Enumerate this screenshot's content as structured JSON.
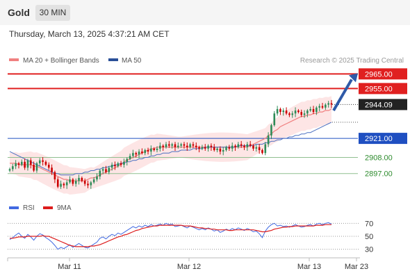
{
  "header": {
    "instrument": "Gold",
    "timeframe": "30 MIN"
  },
  "timestamp": "Thursday, March 13, 2025 4:37:21 AM CET",
  "legend": {
    "ma20": "MA 20 + Bollinger Bands",
    "ma50": "MA 50",
    "credit": "Research © 2025 Trading Central"
  },
  "rsi_legend": {
    "rsi": "RSI",
    "ma9": "9MA"
  },
  "colors": {
    "up": "#2e8b57",
    "down": "#cc0000",
    "resistance": "#e02020",
    "support": "#1f4fc1",
    "green_level": "#2e8b2e",
    "ma20": "#f08080",
    "ma50": "#4a6fc0",
    "bollinger": "#fde0e0",
    "rsi": "#4169e1",
    "rsi_ma": "#dd1c1c",
    "arrow": "#2f5aa8"
  },
  "chart_data": [
    {
      "type": "candlestick",
      "title": "Gold 30 MIN",
      "y_range": [
        2885,
        2968
      ],
      "x_labels": [
        "Mar 11",
        "Mar 12",
        "Mar 13",
        "Mar 23"
      ],
      "last_price": 2944.09,
      "levels": [
        {
          "label": "2965.00",
          "value": 2965.0,
          "kind": "resistance"
        },
        {
          "label": "2955.00",
          "value": 2955.0,
          "kind": "resistance"
        },
        {
          "label": "2944.09",
          "value": 2944.09,
          "kind": "last"
        },
        {
          "label": "2921.00",
          "value": 2921.0,
          "kind": "support"
        },
        {
          "label": "2908.00",
          "value": 2908.0,
          "kind": "minor"
        },
        {
          "label": "2897.00",
          "value": 2897.0,
          "kind": "minor"
        }
      ],
      "forecast_arrow": {
        "from_price": 2940,
        "to_price": 2965
      },
      "closes": [
        2900,
        2902,
        2904,
        2903,
        2905,
        2901,
        2906,
        2903,
        2899,
        2904,
        2906,
        2905,
        2903,
        2901,
        2898,
        2893,
        2888,
        2890,
        2889,
        2891,
        2893,
        2890,
        2892,
        2894,
        2892,
        2890,
        2889,
        2891,
        2893,
        2895,
        2899,
        2900,
        2898,
        2901,
        2903,
        2902,
        2904,
        2903,
        2905,
        2907,
        2909,
        2911,
        2910,
        2912,
        2911,
        2913,
        2912,
        2914,
        2913,
        2914,
        2916,
        2915,
        2917,
        2916,
        2917,
        2915,
        2916,
        2917,
        2916,
        2915,
        2917,
        2916,
        2915,
        2914,
        2915,
        2914,
        2916,
        2915,
        2913,
        2914,
        2912,
        2913,
        2915,
        2914,
        2916,
        2915,
        2917,
        2916,
        2915,
        2917,
        2916,
        2914,
        2915,
        2913,
        2911,
        2917,
        2923,
        2930,
        2938,
        2941,
        2939,
        2940,
        2938,
        2937,
        2938,
        2940,
        2939,
        2937,
        2938,
        2940,
        2941,
        2939,
        2942,
        2943,
        2942,
        2944,
        2945,
        2944.09
      ],
      "ma20": [
        2904,
        2904,
        2904,
        2903,
        2903,
        2903,
        2903,
        2903,
        2902,
        2902,
        2901,
        2900,
        2899,
        2898,
        2897,
        2896,
        2895,
        2894,
        2893,
        2893,
        2892,
        2892,
        2892,
        2892,
        2892,
        2892,
        2893,
        2894,
        2894,
        2895,
        2896,
        2897,
        2898,
        2899,
        2900,
        2901,
        2902,
        2903,
        2905,
        2906,
        2907,
        2908,
        2909,
        2910,
        2911,
        2912,
        2913,
        2914,
        2914,
        2915,
        2915,
        2915,
        2915,
        2915,
        2915,
        2915,
        2915,
        2915,
        2915,
        2915,
        2915,
        2915,
        2915,
        2915,
        2915,
        2915,
        2915,
        2915,
        2915,
        2915,
        2915,
        2915,
        2915,
        2915,
        2915,
        2915,
        2915,
        2915,
        2915,
        2915,
        2916,
        2917,
        2918,
        2919,
        2920,
        2921,
        2923,
        2924,
        2926,
        2927,
        2929,
        2930,
        2931,
        2932,
        2933,
        2934,
        2935,
        2936,
        2936,
        2937,
        2937,
        2938,
        2938,
        2939,
        2939,
        2940,
        2940,
        2941
      ],
      "ma50": [
        2912,
        2911,
        2910,
        2909,
        2908,
        2907,
        2906,
        2905,
        2904,
        2903,
        2902,
        2901,
        2900,
        2899,
        2898,
        2897,
        2897,
        2896,
        2896,
        2896,
        2896,
        2896,
        2897,
        2897,
        2897,
        2898,
        2898,
        2899,
        2899,
        2900,
        2900,
        2901,
        2901,
        2902,
        2902,
        2903,
        2903,
        2904,
        2904,
        2905,
        2905,
        2906,
        2906,
        2907,
        2907,
        2908,
        2908,
        2909,
        2909,
        2910,
        2910,
        2911,
        2911,
        2911,
        2912,
        2912,
        2912,
        2913,
        2913,
        2913,
        2913,
        2914,
        2914,
        2914,
        2914,
        2915,
        2915,
        2915,
        2915,
        2915,
        2915,
        2915,
        2915,
        2915,
        2915,
        2915,
        2916,
        2916,
        2916,
        2916,
        2916,
        2916,
        2917,
        2917,
        2917,
        2918,
        2918,
        2919,
        2919,
        2920,
        2920,
        2921,
        2921,
        2922,
        2922,
        2923,
        2923,
        2924,
        2924,
        2925,
        2925,
        2926,
        2927,
        2928,
        2929,
        2930,
        2931,
        2932
      ]
    },
    {
      "type": "line",
      "title": "RSI",
      "y_ticks": [
        "70",
        "50",
        "30"
      ],
      "y_range": [
        20,
        80
      ],
      "series": [
        {
          "name": "RSI",
          "values": [
            45,
            48,
            52,
            55,
            50,
            47,
            53,
            49,
            44,
            50,
            54,
            52,
            48,
            45,
            41,
            36,
            30,
            33,
            31,
            34,
            37,
            33,
            36,
            39,
            36,
            33,
            32,
            35,
            38,
            41,
            47,
            49,
            46,
            50,
            53,
            51,
            55,
            53,
            56,
            59,
            62,
            65,
            63,
            66,
            64,
            67,
            65,
            68,
            66,
            67,
            69,
            67,
            70,
            68,
            69,
            65,
            66,
            67,
            65,
            63,
            66,
            64,
            62,
            60,
            62,
            60,
            63,
            61,
            58,
            60,
            56,
            58,
            61,
            59,
            62,
            60,
            63,
            61,
            59,
            62,
            60,
            57,
            58,
            54,
            48,
            58,
            64,
            68,
            70,
            66,
            67,
            65,
            66,
            64,
            66,
            68,
            66,
            64,
            65,
            67,
            68,
            66,
            69,
            70,
            68,
            70,
            71,
            69
          ]
        },
        {
          "name": "9MA",
          "values": [
            47,
            47,
            48,
            49,
            49,
            49,
            50,
            50,
            50,
            50,
            50,
            51,
            50,
            50,
            48,
            46,
            44,
            42,
            40,
            38,
            36,
            35,
            34,
            34,
            34,
            34,
            34,
            35,
            35,
            36,
            37,
            39,
            41,
            43,
            45,
            47,
            49,
            50,
            52,
            53,
            55,
            57,
            59,
            60,
            62,
            63,
            64,
            65,
            66,
            66,
            67,
            67,
            67,
            67,
            67,
            67,
            67,
            67,
            66,
            66,
            66,
            65,
            64,
            63,
            63,
            62,
            62,
            61,
            61,
            60,
            60,
            60,
            60,
            59,
            59,
            60,
            60,
            60,
            60,
            60,
            60,
            60,
            59,
            58,
            57,
            57,
            58,
            59,
            61,
            62,
            63,
            64,
            64,
            65,
            65,
            66,
            66,
            66,
            66,
            66,
            66,
            66,
            67,
            67,
            67,
            68,
            68,
            68
          ]
        }
      ]
    }
  ]
}
